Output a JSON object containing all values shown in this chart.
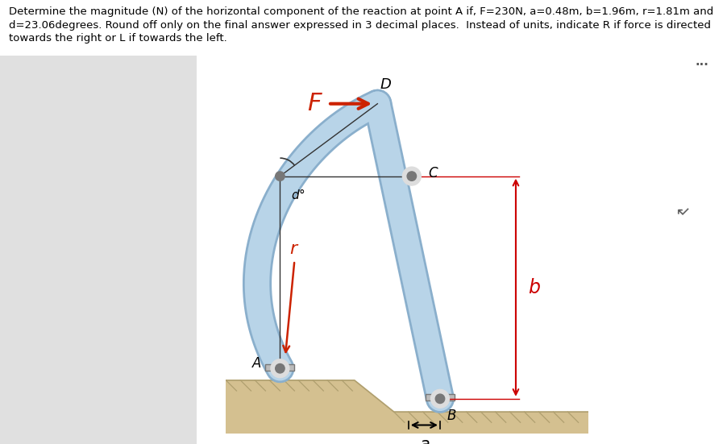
{
  "title_line1": "Determine the magnitude (N) of the horizontal component of the reaction at point A if, F=230N, a=0.48m, b=1.96m, r=1.81m and",
  "title_line2": "d=23.06degrees. Round off only on the final answer expressed in 3 decimal places.  Instead of units, indicate R if force is directed",
  "title_line3": "towards the right or L if towards the left.",
  "title_fontsize": 9.5,
  "background_color": "#ffffff",
  "panel_color": "#e0e0e0",
  "fig_width": 9.02,
  "fig_height": 5.51,
  "dots_text": "...",
  "label_F": "F",
  "label_D": "D",
  "label_C": "C",
  "label_A": "A",
  "label_B": "B",
  "label_r": "r",
  "label_d": "d",
  "label_a": "a",
  "label_b": "b",
  "member_color": "#b8d4e8",
  "member_edge_color": "#8aafcc",
  "ground_color": "#d4c090",
  "ground_edge_color": "#b0a070",
  "arrow_color": "#cc2200",
  "dim_color": "#cc0000",
  "text_color": "#000000",
  "line_color": "#333333"
}
